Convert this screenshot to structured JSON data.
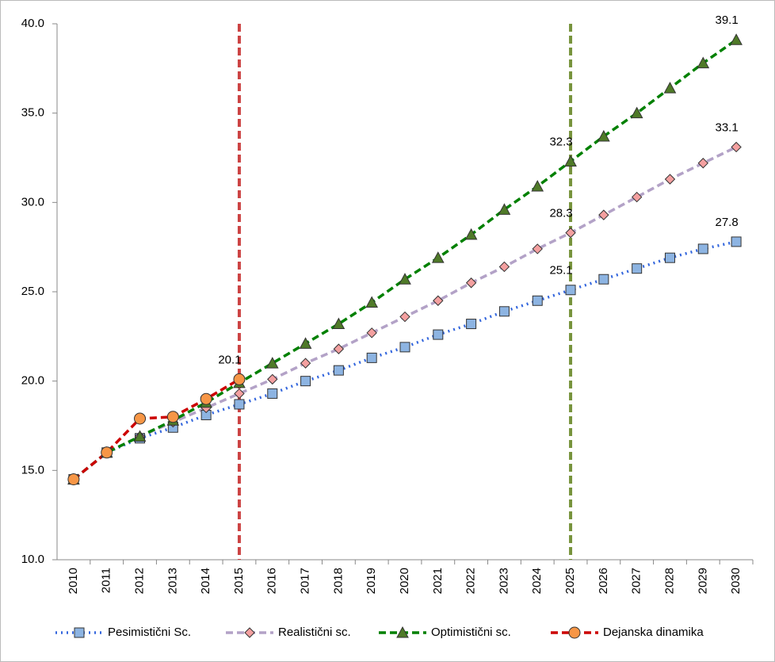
{
  "chart_data": {
    "type": "line",
    "categories": [
      "2010",
      "2011",
      "2012",
      "2013",
      "2014",
      "2015",
      "2016",
      "2017",
      "2018",
      "2019",
      "2020",
      "2021",
      "2022",
      "2023",
      "2024",
      "2025",
      "2026",
      "2027",
      "2028",
      "2029",
      "2030"
    ],
    "ylim": [
      10,
      40
    ],
    "yticks": [
      {
        "value": 10,
        "label": "10.0"
      },
      {
        "value": 15,
        "label": "15.0"
      },
      {
        "value": 20,
        "label": "20.0"
      },
      {
        "value": 25,
        "label": "25.0"
      },
      {
        "value": 30,
        "label": "30.0"
      },
      {
        "value": 35,
        "label": "35.0"
      },
      {
        "value": 40,
        "label": "40.0"
      }
    ],
    "grid": false,
    "legend": "bottom",
    "reference_lines": [
      {
        "at": "2015",
        "color": "#cc4444"
      },
      {
        "at": "2025",
        "color": "#77933c"
      }
    ],
    "series": [
      {
        "name": "Pesimistični Sc.",
        "color": "#3366dd",
        "line_style": "dotted",
        "marker": "square",
        "marker_color": "#8db4e2",
        "values": [
          14.5,
          16.0,
          16.8,
          17.4,
          18.1,
          18.7,
          19.3,
          20.0,
          20.6,
          21.3,
          21.9,
          22.6,
          23.2,
          23.9,
          24.5,
          25.1,
          25.7,
          26.3,
          26.9,
          27.4,
          27.8
        ],
        "value_labels": [
          null,
          null,
          null,
          null,
          null,
          null,
          null,
          null,
          null,
          null,
          null,
          null,
          null,
          null,
          null,
          "25.1",
          null,
          null,
          null,
          null,
          "27.8"
        ]
      },
      {
        "name": "Realistični sc.",
        "color": "#b3a2c7",
        "line_style": "dashed",
        "marker": "diamond",
        "marker_color": "#f4a0a0",
        "values": [
          14.5,
          16.0,
          16.9,
          17.7,
          18.5,
          19.3,
          20.1,
          21.0,
          21.8,
          22.7,
          23.6,
          24.5,
          25.5,
          26.4,
          27.4,
          28.3,
          29.3,
          30.3,
          31.3,
          32.2,
          33.1
        ],
        "value_labels": [
          null,
          null,
          null,
          null,
          null,
          null,
          null,
          null,
          null,
          null,
          null,
          null,
          null,
          null,
          null,
          "28.3",
          null,
          null,
          null,
          null,
          "33.1"
        ]
      },
      {
        "name": "Optimistični sc.",
        "color": "#008000",
        "line_style": "dashed",
        "marker": "triangle",
        "marker_color": "#4f7a28",
        "values": [
          14.5,
          16.0,
          16.9,
          17.8,
          18.8,
          19.9,
          21.0,
          22.1,
          23.2,
          24.4,
          25.7,
          26.9,
          28.2,
          29.6,
          30.9,
          32.3,
          33.7,
          35.0,
          36.4,
          37.8,
          39.1
        ],
        "value_labels": [
          null,
          null,
          null,
          null,
          null,
          null,
          null,
          null,
          null,
          null,
          null,
          null,
          null,
          null,
          null,
          "32.3",
          null,
          null,
          null,
          null,
          "39.1"
        ]
      },
      {
        "name": "Dejanska dinamika",
        "color": "#cc0000",
        "line_style": "dashed",
        "marker": "circle",
        "marker_color": "#f79646",
        "values": [
          14.5,
          16.0,
          17.9,
          18.0,
          19.0,
          20.1,
          null,
          null,
          null,
          null,
          null,
          null,
          null,
          null,
          null,
          null,
          null,
          null,
          null,
          null,
          null
        ],
        "value_labels": [
          null,
          null,
          null,
          null,
          null,
          "20.1",
          null,
          null,
          null,
          null,
          null,
          null,
          null,
          null,
          null,
          null,
          null,
          null,
          null,
          null,
          null
        ]
      }
    ]
  }
}
